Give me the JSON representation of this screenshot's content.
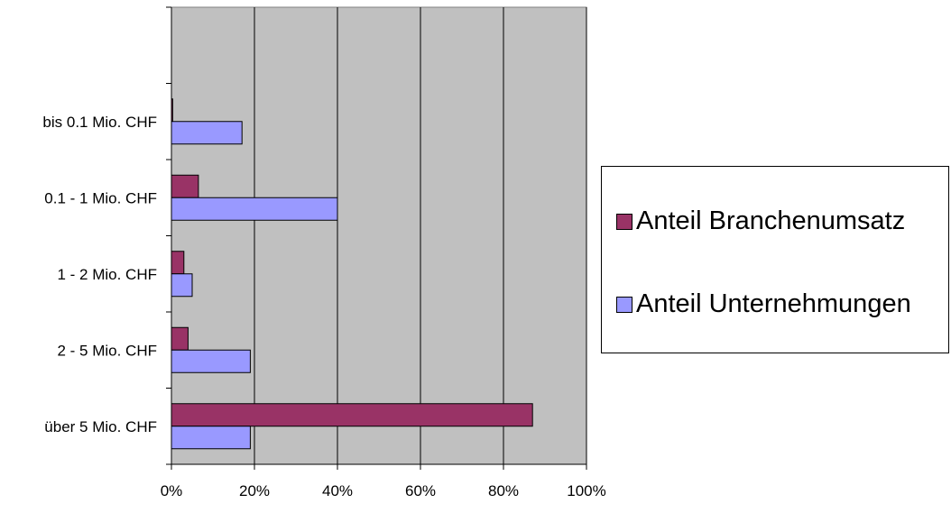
{
  "chart_data": {
    "type": "bar",
    "orientation": "horizontal",
    "categories": [
      "über 5 Mio. CHF",
      "2 - 5 Mio. CHF",
      "1 - 2 Mio. CHF",
      "0.1 - 1 Mio. CHF",
      "bis 0.1 Mio. CHF",
      ""
    ],
    "series": [
      {
        "name": "Anteil Branchenumsatz",
        "color": "#993366",
        "values": [
          87,
          4,
          3,
          6.5,
          0.3,
          0
        ]
      },
      {
        "name": "Anteil Unternehmungen",
        "color": "#9999ff",
        "values": [
          19,
          19,
          5,
          40,
          17,
          0
        ]
      }
    ],
    "x_ticks": [
      "0%",
      "20%",
      "40%",
      "60%",
      "80%",
      "100%"
    ],
    "xlim": [
      0,
      100
    ],
    "grid": true,
    "plot_background": "#c0c0c0",
    "legend_position": "right"
  }
}
